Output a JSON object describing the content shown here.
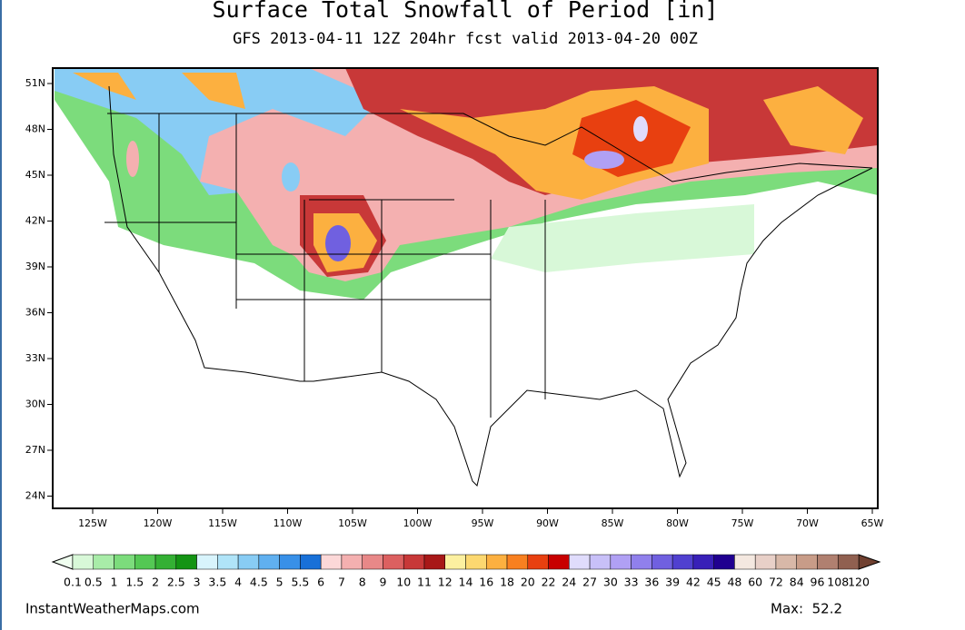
{
  "header": {
    "title": "Surface Total Snowfall of Period [in]",
    "subtitle": "GFS 2013-04-11 12Z 204hr fcst valid 2013-04-20 00Z"
  },
  "map": {
    "lat_labels": [
      "51N",
      "48N",
      "45N",
      "42N",
      "39N",
      "36N",
      "33N",
      "30N",
      "27N",
      "24N"
    ],
    "lon_labels": [
      "125W",
      "120W",
      "115W",
      "110W",
      "105W",
      "100W",
      "95W",
      "90W",
      "85W",
      "80W",
      "75W",
      "70W",
      "65W"
    ]
  },
  "colorbar": {
    "labels": [
      "0.1",
      "0.5",
      "1",
      "1.5",
      "2",
      "2.5",
      "3",
      "3.5",
      "4",
      "4.5",
      "5",
      "5.5",
      "6",
      "7",
      "8",
      "9",
      "10",
      "11",
      "12",
      "14",
      "16",
      "18",
      "20",
      "22",
      "24",
      "27",
      "30",
      "33",
      "36",
      "39",
      "42",
      "45",
      "48",
      "60",
      "72",
      "84",
      "96",
      "108",
      "120"
    ],
    "colors": [
      "#d8f8d8",
      "#a8eca8",
      "#7cdc7c",
      "#54c854",
      "#34b034",
      "#149414",
      "#d8f4fc",
      "#b0e4f8",
      "#88ccf4",
      "#60b0f0",
      "#3890e8",
      "#1870d8",
      "#fcd8d8",
      "#f4b0b0",
      "#e88888",
      "#dc6060",
      "#c83838",
      "#a81818",
      "#fcf0a0",
      "#fcd870",
      "#fcb040",
      "#f88020",
      "#e84010",
      "#c80000",
      "#e0dcfc",
      "#c8c0f8",
      "#b0a0f4",
      "#9080ec",
      "#7060e0",
      "#5040d0",
      "#3820b8",
      "#200090",
      "#f4e8e0",
      "#e8d0c8",
      "#d8b8a8",
      "#c89c88",
      "#b08070",
      "#906050"
    ],
    "under_color": "#f0fff0",
    "over_color": "#704030"
  },
  "footer": {
    "source": "InstantWeatherMaps.com",
    "max": "Max:  52.2"
  }
}
